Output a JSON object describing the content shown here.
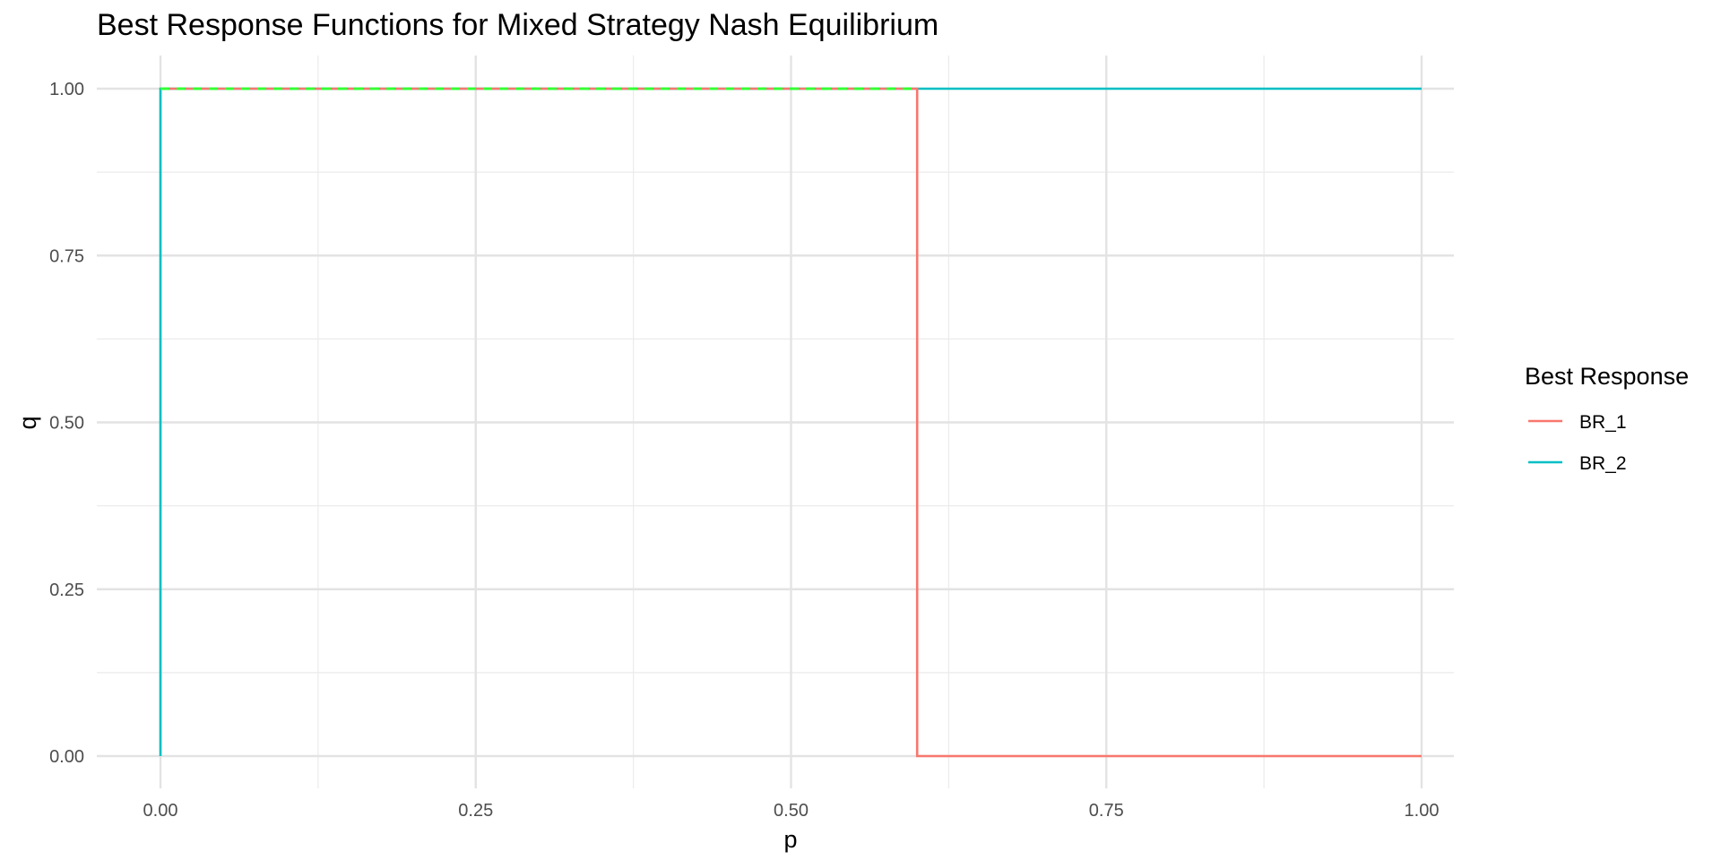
{
  "chart_data": {
    "type": "line",
    "title": "Best Response Functions for Mixed Strategy Nash Equilibrium",
    "xlabel": "p",
    "ylabel": "q",
    "xlim": [
      0,
      1
    ],
    "ylim": [
      0,
      1
    ],
    "x_ticks": [
      0,
      0.25,
      0.5,
      0.75,
      1
    ],
    "x_tick_labels": [
      "0.00",
      "0.25",
      "0.50",
      "0.75",
      "1.00"
    ],
    "y_ticks": [
      0,
      0.25,
      0.5,
      0.75,
      1
    ],
    "y_tick_labels": [
      "0.00",
      "0.25",
      "0.50",
      "0.75",
      "1.00"
    ],
    "grid": true,
    "legend": {
      "title": "Best Response",
      "position": "right"
    },
    "series": [
      {
        "name": "BR_1",
        "color": "#F8766D",
        "style": "solid",
        "x": [
          0,
          0.6,
          0.6,
          1
        ],
        "y": [
          1,
          1,
          0,
          0
        ]
      },
      {
        "name": "BR_2",
        "color": "#00BFC4",
        "style": "solid",
        "x": [
          0,
          0,
          1
        ],
        "y": [
          0,
          1,
          1
        ]
      }
    ],
    "overlay": {
      "color": "#33FF33",
      "style": "dashed",
      "x": [
        0,
        0.6
      ],
      "y": [
        1,
        1
      ]
    }
  }
}
